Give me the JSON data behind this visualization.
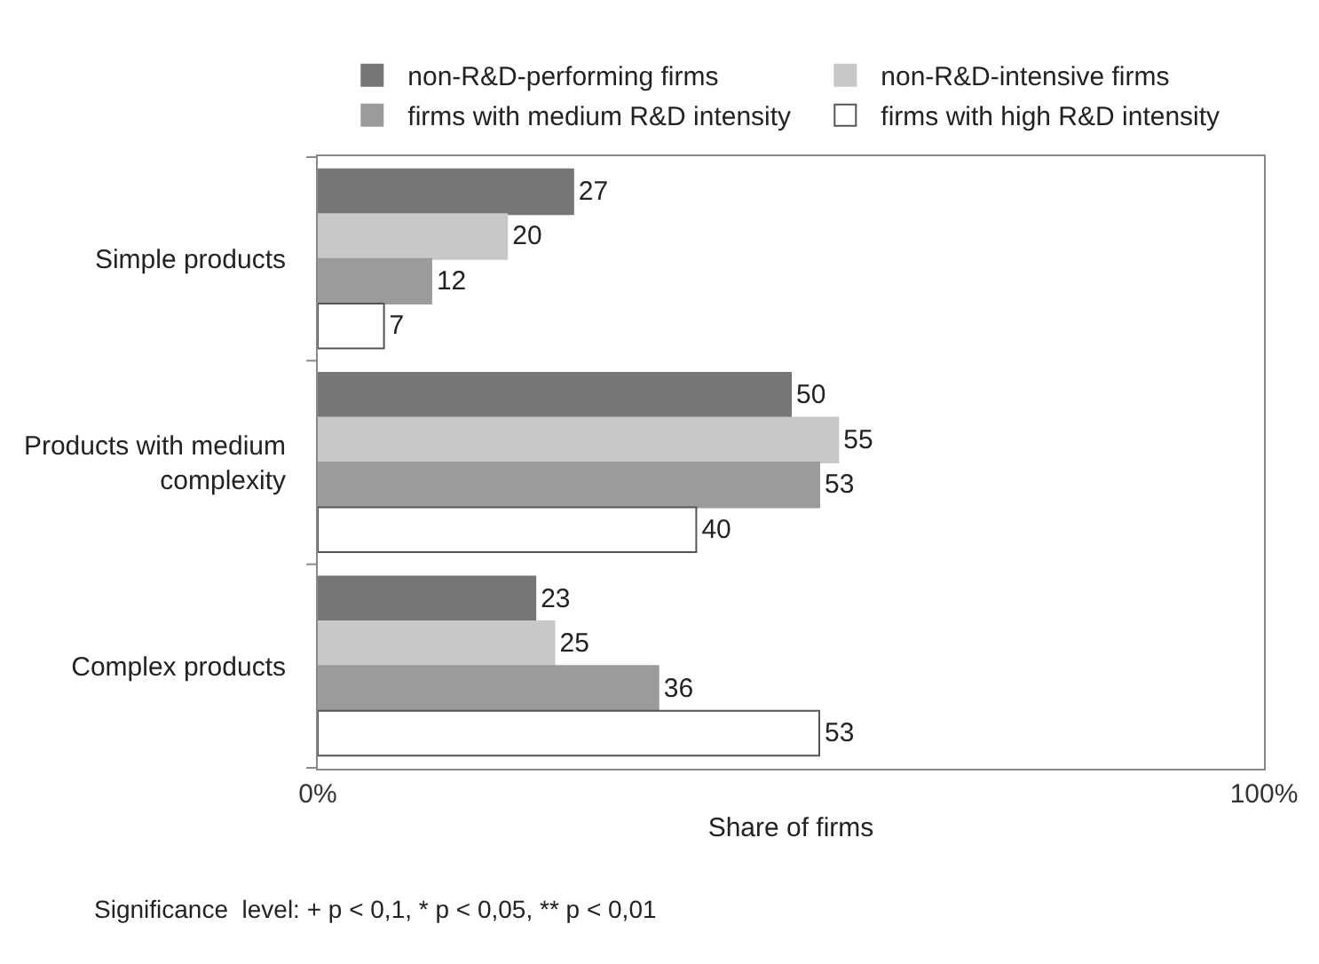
{
  "chart_data": {
    "type": "bar",
    "orientation": "horizontal",
    "xlabel": "Share of firms",
    "categories": [
      "Simple products",
      "Products with medium complexity",
      "Complex products"
    ],
    "series": [
      {
        "name": "non-R&D-performing firms",
        "color": "#767676",
        "values": [
          27,
          50,
          23
        ]
      },
      {
        "name": "non-R&D-intensive firms",
        "color": "#c8c8c8",
        "values": [
          20,
          55,
          25
        ]
      },
      {
        "name": "firms with medium R&D intensity",
        "color": "#9b9b9b",
        "values": [
          12,
          53,
          36
        ]
      },
      {
        "name": "firms with high R&D intensity",
        "color": "#ffffff",
        "values": [
          7,
          40,
          53
        ]
      }
    ],
    "xlim": [
      0,
      100
    ],
    "xticks": [
      {
        "value": 0,
        "label": "0%"
      },
      {
        "value": 100,
        "label": "100%"
      }
    ],
    "data_labels": true,
    "legend": "top",
    "annotations": [
      "Significance  level: + p < 0,1, * p < 0,05, ** p < 0,01"
    ]
  }
}
